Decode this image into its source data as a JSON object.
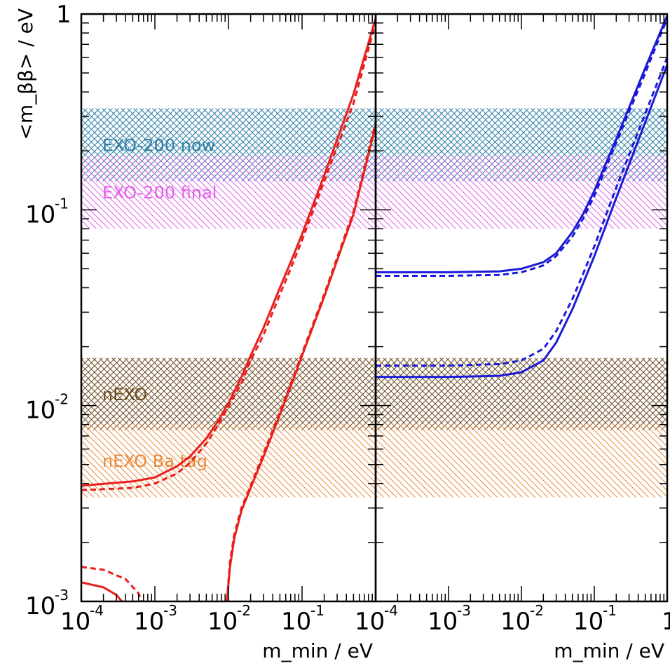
{
  "chart_data": [
    {
      "type": "line",
      "panel": "left",
      "scale": {
        "x": "log",
        "y": "log"
      },
      "xlim": [
        0.0001,
        1
      ],
      "ylim": [
        0.001,
        1
      ],
      "xlabel": "m_min / eV",
      "ylabel": "<m_ββ> / eV",
      "x_ticks": [
        {
          "base": "10",
          "exp": "-4",
          "value": 0.0001
        },
        {
          "base": "10",
          "exp": "-3",
          "value": 0.001
        },
        {
          "base": "10",
          "exp": "-2",
          "value": 0.01
        },
        {
          "base": "10",
          "exp": "-1",
          "value": 0.1
        }
      ],
      "y_ticks": [
        {
          "text": "1",
          "value": 1
        },
        {
          "base": "10",
          "exp": "-1",
          "value": 0.1
        },
        {
          "base": "10",
          "exp": "-2",
          "value": 0.01
        },
        {
          "base": "10",
          "exp": "-3",
          "value": 0.001
        }
      ],
      "bands": [
        {
          "label": "EXO-200 now",
          "ymin": 0.14,
          "ymax": 0.33,
          "color": "#2f7fa6",
          "hatch": "both"
        },
        {
          "label": "EXO-200 final",
          "ymin": 0.08,
          "ymax": 0.19,
          "color": "#e060e8",
          "hatch": "back"
        },
        {
          "label": "nEXO",
          "ymin": 0.0075,
          "ymax": 0.0175,
          "color": "#6e4c22",
          "hatch": "both"
        },
        {
          "label": "nEXO Ba tag",
          "ymin": 0.0034,
          "ymax": 0.0081,
          "color": "#e88a3c",
          "hatch": "back"
        }
      ],
      "series": [
        {
          "color": "#e8201c",
          "style": "solid",
          "x": [
            0.0001,
            0.0005,
            0.001,
            0.002,
            0.003,
            0.005,
            0.007,
            0.01,
            0.015,
            0.02,
            0.03,
            0.05,
            0.07,
            0.1,
            0.2,
            0.5,
            1.0
          ],
          "y": [
            0.0039,
            0.0041,
            0.0043,
            0.0049,
            0.0055,
            0.0068,
            0.0082,
            0.0103,
            0.014,
            0.018,
            0.025,
            0.04,
            0.054,
            0.075,
            0.15,
            0.39,
            0.95
          ]
        },
        {
          "color": "#e8201c",
          "style": "dashed",
          "x": [
            0.0001,
            0.0005,
            0.001,
            0.002,
            0.003,
            0.005,
            0.007,
            0.01,
            0.015,
            0.02,
            0.03,
            0.05,
            0.07,
            0.1,
            0.2,
            0.5,
            1.0
          ],
          "y": [
            0.0037,
            0.0038,
            0.004,
            0.0045,
            0.0051,
            0.0064,
            0.0078,
            0.0099,
            0.013,
            0.017,
            0.023,
            0.037,
            0.05,
            0.07,
            0.14,
            0.35,
            0.9
          ]
        },
        {
          "color": "#e8201c",
          "style": "solid",
          "x": [
            0.0095,
            0.0105,
            0.012,
            0.015,
            0.02,
            0.03,
            0.05,
            0.07,
            0.1,
            0.2,
            0.5,
            1.0
          ],
          "y": [
            0.001,
            0.0015,
            0.0021,
            0.0029,
            0.0038,
            0.0055,
            0.009,
            0.0125,
            0.018,
            0.036,
            0.095,
            0.27
          ]
        },
        {
          "color": "#e8201c",
          "style": "dashed",
          "x": [
            0.0095,
            0.0105,
            0.012,
            0.015,
            0.02,
            0.03,
            0.05,
            0.07,
            0.1,
            0.2,
            0.5,
            1.0
          ],
          "y": [
            0.001,
            0.0016,
            0.0022,
            0.003,
            0.0039,
            0.0057,
            0.0093,
            0.0129,
            0.0185,
            0.037,
            0.098,
            0.28
          ]
        },
        {
          "color": "#e8201c",
          "style": "solid",
          "x": [
            0.0001,
            0.0002,
            0.0003,
            0.0004,
            0.00045
          ],
          "y": [
            0.00125,
            0.00118,
            0.00108,
            0.00095,
            0.00088
          ]
        },
        {
          "color": "#e8201c",
          "style": "dashed",
          "x": [
            0.0001,
            0.0002,
            0.0004,
            0.0006,
            0.0007
          ],
          "y": [
            0.0015,
            0.00145,
            0.0013,
            0.0011,
            0.00095
          ]
        }
      ]
    },
    {
      "type": "line",
      "panel": "right",
      "scale": {
        "x": "log",
        "y": "log"
      },
      "xlim": [
        0.0001,
        1
      ],
      "ylim": [
        0.001,
        1
      ],
      "xlabel": "m_min / eV",
      "x_ticks": [
        {
          "base": "10",
          "exp": "-4",
          "value": 0.0001
        },
        {
          "base": "10",
          "exp": "-3",
          "value": 0.001
        },
        {
          "base": "10",
          "exp": "-2",
          "value": 0.01
        },
        {
          "base": "10",
          "exp": "-1",
          "value": 0.1
        },
        {
          "text": "1",
          "value": 1
        }
      ],
      "bands": [
        {
          "ymin": 0.14,
          "ymax": 0.33,
          "color": "#2f7fa6",
          "hatch": "both"
        },
        {
          "ymin": 0.08,
          "ymax": 0.19,
          "color": "#e060e8",
          "hatch": "back"
        },
        {
          "ymin": 0.0075,
          "ymax": 0.0175,
          "color": "#6e4c22",
          "hatch": "both"
        },
        {
          "ymin": 0.0034,
          "ymax": 0.0081,
          "color": "#e88a3c",
          "hatch": "back"
        }
      ],
      "series": [
        {
          "color": "#1a1ad8",
          "style": "solid",
          "x": [
            0.0001,
            0.001,
            0.005,
            0.01,
            0.02,
            0.03,
            0.05,
            0.07,
            0.1,
            0.2,
            0.5,
            1.0
          ],
          "y": [
            0.048,
            0.048,
            0.0485,
            0.05,
            0.054,
            0.06,
            0.077,
            0.095,
            0.125,
            0.23,
            0.53,
            0.98
          ]
        },
        {
          "color": "#1a1ad8",
          "style": "dashed",
          "x": [
            0.0001,
            0.001,
            0.005,
            0.01,
            0.02,
            0.03,
            0.05,
            0.07,
            0.1,
            0.2,
            0.5,
            1.0
          ],
          "y": [
            0.046,
            0.046,
            0.0465,
            0.048,
            0.052,
            0.058,
            0.073,
            0.09,
            0.118,
            0.22,
            0.5,
            0.95
          ]
        },
        {
          "color": "#1a1ad8",
          "style": "solid",
          "x": [
            0.0001,
            0.001,
            0.005,
            0.01,
            0.02,
            0.03,
            0.05,
            0.07,
            0.1,
            0.2,
            0.5,
            1.0
          ],
          "y": [
            0.014,
            0.014,
            0.0142,
            0.0148,
            0.017,
            0.021,
            0.031,
            0.042,
            0.058,
            0.115,
            0.28,
            0.55
          ]
        },
        {
          "color": "#1a1ad8",
          "style": "dashed",
          "x": [
            0.0001,
            0.001,
            0.005,
            0.01,
            0.02,
            0.03,
            0.05,
            0.07,
            0.1,
            0.2,
            0.5,
            1.0
          ],
          "y": [
            0.016,
            0.016,
            0.0163,
            0.017,
            0.0195,
            0.024,
            0.035,
            0.047,
            0.065,
            0.13,
            0.31,
            0.6
          ]
        }
      ]
    }
  ]
}
